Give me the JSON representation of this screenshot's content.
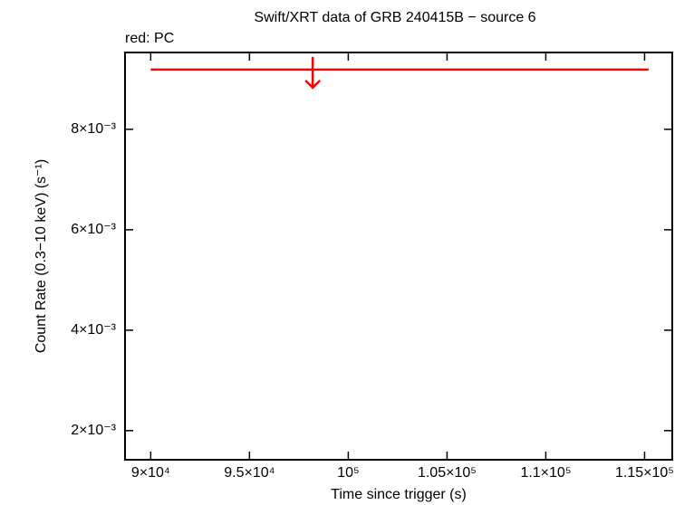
{
  "chart_data": {
    "type": "errorbar",
    "title": "Swift/XRT data of GRB 240415B − source 6",
    "annotation": "red: PC",
    "x_label": "Time since trigger (s)",
    "y_label": "Count Rate (0.3−10 keV) (s⁻¹)",
    "xlim": [
      88700,
      116400
    ],
    "ylim": [
      0.00142,
      0.00953
    ],
    "xticks": [
      {
        "value": 90000,
        "label": "9×10⁴"
      },
      {
        "value": 95000,
        "label": "9.5×10⁴"
      },
      {
        "value": 100000,
        "label": "10⁵"
      },
      {
        "value": 105000,
        "label": "1.05×10⁵"
      },
      {
        "value": 110000,
        "label": "1.1×10⁵"
      },
      {
        "value": 115000,
        "label": "1.15×10⁵"
      }
    ],
    "yticks": [
      {
        "value": 0.002,
        "label": "2×10⁻³"
      },
      {
        "value": 0.004,
        "label": "4×10⁻³"
      },
      {
        "value": 0.006,
        "label": "6×10⁻³"
      },
      {
        "value": 0.008,
        "label": "8×10⁻³"
      }
    ],
    "series": [
      {
        "name": "PC",
        "color": "#ff0000",
        "upper_limit": true,
        "x": [
          98200
        ],
        "x_start": [
          90000
        ],
        "x_end": [
          115200
        ],
        "values": [
          0.00919
        ]
      }
    ]
  }
}
